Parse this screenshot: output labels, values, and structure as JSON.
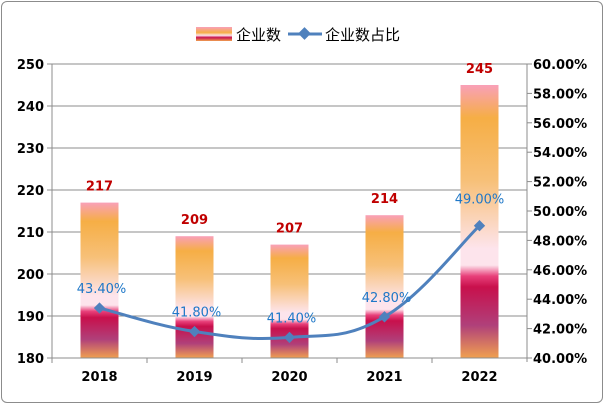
{
  "chart_data": {
    "type": "bar+line",
    "categories": [
      "2018",
      "2019",
      "2020",
      "2021",
      "2022"
    ],
    "series": [
      {
        "name": "企业数",
        "type": "bar",
        "axis": "left",
        "values": [
          217,
          209,
          207,
          214,
          245
        ],
        "data_labels": [
          "217",
          "209",
          "207",
          "214",
          "245"
        ]
      },
      {
        "name": "企业数占比",
        "type": "line",
        "axis": "right",
        "values": [
          43.4,
          41.8,
          41.4,
          42.8,
          49.0
        ],
        "data_labels": [
          "43.40%",
          "41.80%",
          "41.40%",
          "42.80%",
          "49.00%"
        ]
      }
    ],
    "y_left": {
      "range": [
        180,
        250
      ],
      "ticks": [
        "180",
        "190",
        "200",
        "210",
        "220",
        "230",
        "240",
        "250"
      ]
    },
    "y_right": {
      "range": [
        40,
        60
      ],
      "ticks": [
        "40.00%",
        "42.00%",
        "44.00%",
        "46.00%",
        "48.00%",
        "50.00%",
        "52.00%",
        "54.00%",
        "56.00%",
        "58.00%",
        "60.00%"
      ]
    },
    "grid": true,
    "legend_position": "top",
    "colors": {
      "line": "#4f81bd",
      "bar_label": "#c00000",
      "line_label": "#1f78c8",
      "bar_top": "#f9a0b8",
      "bar_orange": "#f6ae45",
      "bar_crimson": "#c8104c",
      "bar_purple": "#b0407a"
    }
  }
}
